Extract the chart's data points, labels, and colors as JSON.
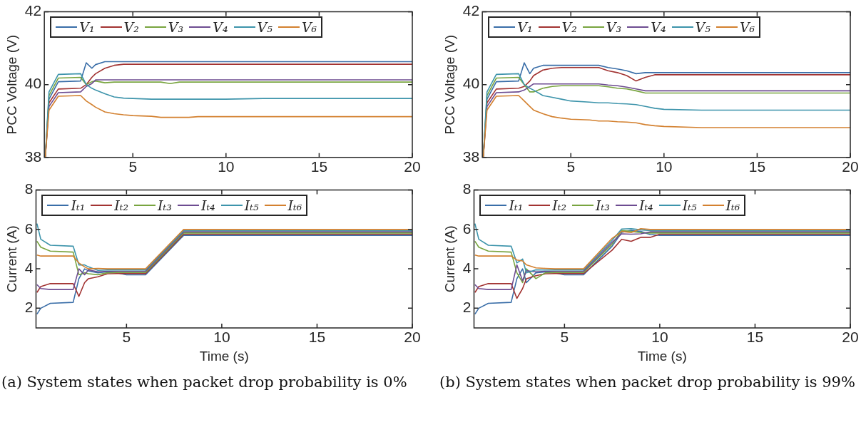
{
  "chart_data": [
    {
      "type": "line",
      "ylabel": "PCC Voltage (V)",
      "xlim": [
        0.25,
        20
      ],
      "xticks": [
        5,
        10,
        15,
        20
      ],
      "ylim": [
        38,
        42
      ],
      "yticks": [
        38,
        40,
        42
      ],
      "legend": "top left",
      "x": [
        0.3,
        0.5,
        1,
        2.2,
        2.5,
        2.8,
        3,
        3.5,
        4,
        4.5,
        5,
        6,
        6.5,
        7,
        7.5,
        8,
        8.5,
        9,
        9.5,
        10,
        12,
        15,
        20
      ],
      "series": [
        {
          "name": "V₁",
          "color": "#3a6ea8",
          "values": [
            38,
            39.6,
            40.08,
            40.1,
            40.6,
            40.45,
            40.55,
            40.63,
            40.63,
            40.63,
            40.63,
            40.63,
            40.63,
            40.63,
            40.63,
            40.63,
            40.63,
            40.63,
            40.63,
            40.63,
            40.63,
            40.63,
            40.63
          ]
        },
        {
          "name": "V₂",
          "color": "#a23332",
          "values": [
            38,
            39.5,
            39.88,
            39.9,
            40.0,
            40.2,
            40.3,
            40.45,
            40.53,
            40.56,
            40.56,
            40.56,
            40.56,
            40.56,
            40.56,
            40.56,
            40.56,
            40.56,
            40.56,
            40.56,
            40.56,
            40.56,
            40.56
          ]
        },
        {
          "name": "V₃",
          "color": "#78a43f",
          "values": [
            38,
            39.7,
            40.18,
            40.2,
            40.0,
            40.08,
            40.1,
            40.05,
            40.07,
            40.07,
            40.07,
            40.07,
            40.07,
            40.03,
            40.07,
            40.07,
            40.07,
            40.07,
            40.07,
            40.07,
            40.07,
            40.07,
            40.07
          ]
        },
        {
          "name": "V₄",
          "color": "#6d4c91",
          "values": [
            38,
            39.4,
            39.78,
            39.8,
            39.95,
            40.03,
            40.13,
            40.13,
            40.13,
            40.13,
            40.13,
            40.13,
            40.13,
            40.13,
            40.13,
            40.13,
            40.13,
            40.13,
            40.13,
            40.13,
            40.13,
            40.13,
            40.13
          ]
        },
        {
          "name": "V₅",
          "color": "#3d94ab",
          "values": [
            38,
            39.8,
            40.28,
            40.3,
            40.0,
            39.9,
            39.85,
            39.75,
            39.66,
            39.63,
            39.62,
            39.6,
            39.6,
            39.6,
            39.6,
            39.6,
            39.6,
            39.6,
            39.6,
            39.6,
            39.62,
            39.62,
            39.62
          ]
        },
        {
          "name": "V₆",
          "color": "#d3802f",
          "values": [
            38,
            39.3,
            39.68,
            39.7,
            39.55,
            39.45,
            39.38,
            39.25,
            39.2,
            39.17,
            39.15,
            39.13,
            39.1,
            39.1,
            39.1,
            39.1,
            39.12,
            39.12,
            39.12,
            39.12,
            39.12,
            39.12,
            39.12
          ]
        }
      ]
    },
    {
      "type": "line",
      "xlabel": "Time (s)",
      "ylabel": "Current (A)",
      "xlim": [
        0.25,
        20
      ],
      "xticks": [
        5,
        10,
        15,
        20
      ],
      "ylim": [
        1,
        8
      ],
      "yticks": [
        2,
        4,
        6,
        8
      ],
      "legend": "top left",
      "annotations": [
        "(a) System states when packet drop probability is 0%"
      ],
      "x": [
        0.3,
        0.5,
        1,
        2.2,
        2.5,
        2.8,
        3,
        3.5,
        4,
        4.5,
        5,
        6,
        8,
        8.5,
        9,
        9.5,
        10,
        12,
        15,
        20
      ],
      "series": [
        {
          "name": "Iₜ₁",
          "color": "#3a6ea8",
          "values": [
            1.7,
            2.0,
            2.25,
            2.3,
            3.5,
            4.0,
            3.9,
            3.8,
            3.85,
            3.8,
            3.7,
            3.7,
            5.7,
            5.7,
            5.7,
            5.7,
            5.7,
            5.7,
            5.7,
            5.7
          ]
        },
        {
          "name": "Iₜ₂",
          "color": "#a23332",
          "values": [
            2.8,
            3.1,
            3.25,
            3.25,
            2.6,
            3.3,
            3.5,
            3.6,
            3.75,
            3.76,
            3.76,
            3.76,
            5.76,
            5.76,
            5.76,
            5.76,
            5.76,
            5.76,
            5.76,
            5.76
          ]
        },
        {
          "name": "Iₜ₃",
          "color": "#78a43f",
          "values": [
            5.4,
            5.1,
            4.9,
            4.85,
            3.7,
            3.8,
            3.75,
            3.7,
            3.8,
            3.82,
            3.82,
            3.82,
            5.82,
            5.82,
            5.82,
            5.82,
            5.82,
            5.82,
            5.82,
            5.82
          ]
        },
        {
          "name": "Iₜ₄",
          "color": "#6d4c91",
          "values": [
            3.2,
            3.0,
            2.95,
            2.95,
            4.0,
            3.7,
            3.95,
            3.85,
            3.88,
            3.88,
            3.88,
            3.88,
            5.88,
            5.88,
            5.88,
            5.88,
            5.88,
            5.88,
            5.88,
            5.88
          ]
        },
        {
          "name": "Iₜ₅",
          "color": "#3d94ab",
          "values": [
            6.3,
            5.5,
            5.2,
            5.15,
            4.2,
            4.2,
            4.1,
            3.92,
            3.94,
            3.94,
            3.94,
            3.94,
            5.94,
            5.94,
            5.94,
            5.94,
            5.94,
            5.94,
            5.94,
            5.94
          ]
        },
        {
          "name": "Iₜ₆",
          "color": "#d3802f",
          "values": [
            4.7,
            4.65,
            4.65,
            4.65,
            4.3,
            4.1,
            4.0,
            4.02,
            4.0,
            4.0,
            4.0,
            4.0,
            6.0,
            6.0,
            6.0,
            6.0,
            6.0,
            6.0,
            6.0,
            6.0
          ]
        }
      ]
    },
    {
      "type": "line",
      "ylabel": "PCC Voltage (V)",
      "xlim": [
        0.25,
        20
      ],
      "xticks": [
        5,
        10,
        15,
        20
      ],
      "ylim": [
        38,
        42
      ],
      "yticks": [
        38,
        40,
        42
      ],
      "legend": "top left",
      "x": [
        0.3,
        0.5,
        1,
        2.2,
        2.5,
        2.8,
        3,
        3.5,
        4,
        4.5,
        5,
        6,
        6.5,
        7,
        7.5,
        8,
        8.5,
        9,
        9.5,
        10,
        12,
        15,
        20
      ],
      "series": [
        {
          "name": "V₁",
          "color": "#3a6ea8",
          "values": [
            38,
            39.6,
            40.08,
            40.1,
            40.6,
            40.3,
            40.45,
            40.53,
            40.53,
            40.53,
            40.53,
            40.53,
            40.53,
            40.47,
            40.43,
            40.38,
            40.3,
            40.33,
            40.33,
            40.33,
            40.33,
            40.33,
            40.33
          ]
        },
        {
          "name": "V₂",
          "color": "#a23332",
          "values": [
            38,
            39.5,
            39.88,
            39.9,
            39.95,
            40.1,
            40.25,
            40.4,
            40.45,
            40.47,
            40.47,
            40.47,
            40.47,
            40.38,
            40.33,
            40.25,
            40.1,
            40.2,
            40.27,
            40.27,
            40.27,
            40.27,
            40.27
          ]
        },
        {
          "name": "V₃",
          "color": "#78a43f",
          "values": [
            38,
            39.7,
            40.18,
            40.2,
            40.0,
            39.8,
            39.8,
            39.9,
            39.95,
            39.97,
            39.97,
            39.97,
            39.97,
            39.94,
            39.9,
            39.88,
            39.83,
            39.77,
            39.77,
            39.77,
            39.77,
            39.77,
            39.77
          ]
        },
        {
          "name": "V₄",
          "color": "#6d4c91",
          "values": [
            38,
            39.4,
            39.78,
            39.8,
            39.85,
            39.95,
            40.02,
            40.02,
            40.02,
            40.02,
            40.02,
            40.02,
            40.02,
            39.99,
            39.97,
            39.93,
            39.88,
            39.83,
            39.83,
            39.83,
            39.83,
            39.83,
            39.83
          ]
        },
        {
          "name": "V₅",
          "color": "#3d94ab",
          "values": [
            38,
            39.8,
            40.28,
            40.3,
            40.0,
            39.9,
            39.85,
            39.7,
            39.65,
            39.6,
            39.55,
            39.52,
            39.5,
            39.5,
            39.48,
            39.47,
            39.45,
            39.4,
            39.35,
            39.32,
            39.3,
            39.3,
            39.3
          ]
        },
        {
          "name": "V₆",
          "color": "#d3802f",
          "values": [
            38,
            39.3,
            39.68,
            39.7,
            39.55,
            39.4,
            39.3,
            39.2,
            39.12,
            39.08,
            39.05,
            39.03,
            39.0,
            39.0,
            38.98,
            38.97,
            38.95,
            38.9,
            38.87,
            38.85,
            38.82,
            38.82,
            38.82
          ]
        }
      ]
    },
    {
      "type": "line",
      "xlabel": "Time (s)",
      "ylabel": "Current (A)",
      "xlim": [
        0.25,
        20
      ],
      "xticks": [
        5,
        10,
        15,
        20
      ],
      "ylim": [
        1,
        8
      ],
      "yticks": [
        2,
        4,
        6,
        8
      ],
      "legend": "top left",
      "annotations": [
        "(b) System states when packet drop probability is 99%"
      ],
      "x": [
        0.3,
        0.5,
        1,
        2.2,
        2.5,
        2.8,
        3,
        3.5,
        4,
        4.5,
        5,
        6,
        7.5,
        8,
        8.5,
        9,
        9.5,
        10,
        12,
        15,
        20
      ],
      "series": [
        {
          "name": "Iₜ₁",
          "color": "#3a6ea8",
          "values": [
            1.7,
            2.0,
            2.25,
            2.3,
            3.5,
            4.0,
            3.3,
            3.8,
            3.85,
            3.8,
            3.7,
            3.7,
            5.15,
            5.85,
            5.96,
            5.9,
            5.74,
            5.7,
            5.7,
            5.7,
            5.7
          ]
        },
        {
          "name": "Iₜ₂",
          "color": "#a23332",
          "values": [
            2.8,
            3.1,
            3.25,
            3.25,
            2.5,
            3.0,
            3.5,
            3.65,
            3.75,
            3.76,
            3.76,
            3.76,
            4.95,
            5.5,
            5.4,
            5.6,
            5.6,
            5.76,
            5.76,
            5.76,
            5.76
          ]
        },
        {
          "name": "Iₜ₃",
          "color": "#78a43f",
          "values": [
            5.4,
            5.1,
            4.9,
            4.85,
            3.8,
            3.3,
            4.0,
            3.5,
            3.8,
            3.82,
            3.82,
            3.82,
            5.25,
            5.95,
            5.9,
            5.84,
            5.82,
            5.82,
            5.82,
            5.82,
            5.82
          ]
        },
        {
          "name": "Iₜ₄",
          "color": "#6d4c91",
          "values": [
            3.2,
            3.0,
            2.95,
            2.95,
            4.2,
            3.4,
            3.9,
            3.85,
            3.88,
            3.88,
            3.88,
            3.88,
            5.35,
            5.78,
            5.76,
            5.78,
            5.88,
            5.88,
            5.88,
            5.88,
            5.88
          ]
        },
        {
          "name": "Iₜ₅",
          "color": "#3d94ab",
          "values": [
            6.3,
            5.5,
            5.2,
            5.15,
            4.3,
            4.5,
            3.8,
            3.95,
            3.94,
            3.94,
            3.94,
            3.94,
            5.45,
            6.02,
            6.04,
            5.98,
            5.94,
            5.94,
            5.94,
            5.94,
            5.94
          ]
        },
        {
          "name": "Iₜ₆",
          "color": "#d3802f",
          "values": [
            4.7,
            4.65,
            4.65,
            4.65,
            4.45,
            4.4,
            4.2,
            4.05,
            4.02,
            4.0,
            4.0,
            4.0,
            5.55,
            5.9,
            5.84,
            6.04,
            6.0,
            6.0,
            6.0,
            6.0,
            6.0
          ]
        }
      ]
    }
  ]
}
